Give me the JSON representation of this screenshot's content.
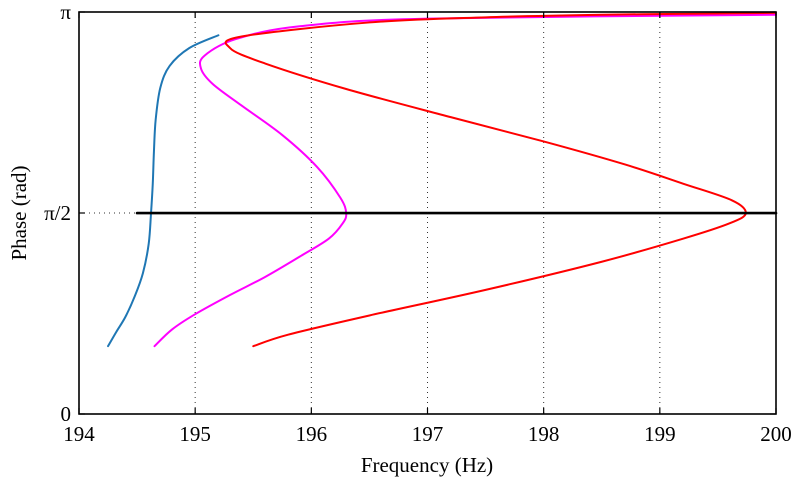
{
  "chart_data": {
    "type": "line",
    "title": "",
    "xlabel": "Frequency (Hz)",
    "ylabel": "Phase (rad)",
    "xlim": [
      194,
      200
    ],
    "ylim": [
      0,
      3.14159
    ],
    "xticks": [
      194,
      195,
      196,
      197,
      198,
      199,
      200
    ],
    "xtick_labels": [
      "194",
      "195",
      "196",
      "197",
      "198",
      "199",
      "200"
    ],
    "yticks": [
      0,
      1.5708,
      3.14159
    ],
    "ytick_labels": [
      "0",
      "π/2",
      "π"
    ],
    "grid": "dotted vertical lines at x ticks",
    "legend": "none",
    "series": [
      {
        "color": "#1f77b4",
        "points": [
          [
            194.25,
            0.53
          ],
          [
            194.32,
            0.64
          ],
          [
            194.4,
            0.76
          ],
          [
            194.48,
            0.92
          ],
          [
            194.55,
            1.1
          ],
          [
            194.6,
            1.33
          ],
          [
            194.62,
            1.57
          ],
          [
            194.635,
            1.8
          ],
          [
            194.645,
            2.05
          ],
          [
            194.66,
            2.3
          ],
          [
            194.7,
            2.55
          ],
          [
            194.78,
            2.72
          ],
          [
            194.95,
            2.86
          ],
          [
            195.2,
            2.96
          ]
        ]
      },
      {
        "color": "#ff00ff",
        "points": [
          [
            194.65,
            0.53
          ],
          [
            194.8,
            0.66
          ],
          [
            195.0,
            0.78
          ],
          [
            195.3,
            0.93
          ],
          [
            195.6,
            1.07
          ],
          [
            195.9,
            1.23
          ],
          [
            196.15,
            1.37
          ],
          [
            196.27,
            1.49
          ],
          [
            196.3,
            1.57
          ],
          [
            196.25,
            1.69
          ],
          [
            196.05,
            1.93
          ],
          [
            195.75,
            2.18
          ],
          [
            195.4,
            2.41
          ],
          [
            195.15,
            2.58
          ],
          [
            195.05,
            2.7
          ],
          [
            195.08,
            2.8
          ],
          [
            195.35,
            2.93
          ],
          [
            195.9,
            3.03
          ],
          [
            197.0,
            3.09
          ],
          [
            200.0,
            3.12
          ]
        ]
      },
      {
        "color": "#ff0000",
        "points": [
          [
            195.5,
            0.53
          ],
          [
            195.8,
            0.62
          ],
          [
            196.5,
            0.77
          ],
          [
            197.5,
            0.97
          ],
          [
            198.5,
            1.19
          ],
          [
            199.2,
            1.37
          ],
          [
            199.6,
            1.49
          ],
          [
            199.74,
            1.57
          ],
          [
            199.62,
            1.67
          ],
          [
            199.2,
            1.8
          ],
          [
            198.7,
            1.95
          ],
          [
            198.0,
            2.13
          ],
          [
            197.2,
            2.32
          ],
          [
            196.3,
            2.54
          ],
          [
            195.6,
            2.74
          ],
          [
            195.3,
            2.86
          ],
          [
            195.4,
            2.95
          ],
          [
            196.5,
            3.06
          ],
          [
            197.5,
            3.1
          ],
          [
            198.5,
            3.12
          ],
          [
            199.5,
            3.13
          ],
          [
            200.0,
            3.135
          ]
        ]
      },
      {
        "color": "#000000",
        "points": [
          [
            194.5,
            1.57
          ],
          [
            200.0,
            1.57
          ]
        ]
      }
    ]
  }
}
